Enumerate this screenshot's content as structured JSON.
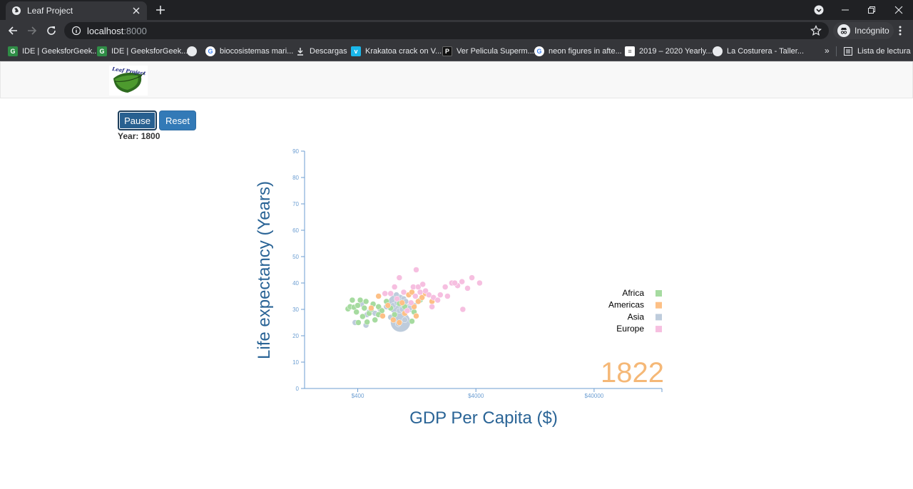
{
  "browser": {
    "tab_title": "Leaf Project",
    "url_host": "localhost",
    "url_port": ":8000",
    "incognito_label": "Incógnito",
    "bookmarks": [
      {
        "label": "IDE | GeeksforGeek...",
        "icon": "gfg-icon",
        "color": "#2f8d46"
      },
      {
        "label": "IDE | GeeksforGeek...",
        "icon": "gfg-icon",
        "color": "#2f8d46"
      },
      {
        "label": "",
        "icon": "globe-icon",
        "color": "#e8eaed"
      },
      {
        "label": "biocosistemas mari...",
        "icon": "google-icon",
        "color": "#ffffff"
      },
      {
        "label": "Descargas",
        "icon": "download-icon",
        "color": "#e8eaed"
      },
      {
        "label": "Krakatoa crack on V...",
        "icon": "vimeo-icon",
        "color": "#1ab7ea"
      },
      {
        "label": "Ver Pelicula Superm...",
        "icon": "p-icon",
        "color": "#111111"
      },
      {
        "label": "neon figures in afte...",
        "icon": "google-icon",
        "color": "#ffffff"
      },
      {
        "label": "2019 – 2020 Yearly...",
        "icon": "doc-icon",
        "color": "#ffffff"
      },
      {
        "label": "La Costurera - Taller...",
        "icon": "globe-icon",
        "color": "#e8eaed"
      }
    ],
    "more_label": "»",
    "reading_list_label": "Lista de lectura"
  },
  "page": {
    "logo_text": "Leaf Project",
    "pause_label": "Pause",
    "reset_label": "Reset",
    "year_label": "Year: 1800"
  },
  "chart_data": {
    "type": "scatter",
    "xlabel": "GDP Per Capita ($)",
    "ylabel": "Life expectancy (Years)",
    "x_scale": "log",
    "xlim": [
      142,
      150000
    ],
    "ylim": [
      0,
      90
    ],
    "x_ticks": [
      400,
      4000,
      40000
    ],
    "x_tick_labels": [
      "$400",
      "$4000",
      "$40000"
    ],
    "y_ticks": [
      0,
      10,
      20,
      30,
      40,
      50,
      60,
      70,
      80,
      90
    ],
    "year_overlay": "1822",
    "legend_position": "right",
    "grid": false,
    "colors": {
      "Africa": "#a6dba0",
      "Americas": "#fdc086",
      "Asia": "#beccdc",
      "Europe": "#f6bfe0",
      "year": "#f5b877",
      "axis": "#6c9ed2",
      "label": "#2a6496"
    },
    "series": [
      {
        "name": "Africa",
        "points": [
          [
            331,
            30.2
          ],
          [
            345,
            31.0
          ],
          [
            360,
            33.5
          ],
          [
            372,
            30.8
          ],
          [
            390,
            29.0
          ],
          [
            400,
            31.5
          ],
          [
            420,
            33.5
          ],
          [
            405,
            25.0
          ],
          [
            440,
            27.3
          ],
          [
            455,
            30.5
          ],
          [
            480,
            25.2
          ],
          [
            500,
            28.5
          ],
          [
            520,
            30.0
          ],
          [
            540,
            32.0
          ],
          [
            560,
            26.0
          ],
          [
            600,
            31.0
          ],
          [
            640,
            29.5
          ],
          [
            700,
            33.0
          ],
          [
            760,
            30.5
          ],
          [
            820,
            28.0
          ],
          [
            900,
            32.2
          ],
          [
            1000,
            31.0
          ],
          [
            1150,
            25.5
          ],
          [
            1350,
            33.5
          ],
          [
            1200,
            29.0
          ],
          [
            470,
            33.0
          ],
          [
            600,
            28.0
          ]
        ]
      },
      {
        "name": "Americas",
        "points": [
          [
            520,
            30.5
          ],
          [
            600,
            35.0
          ],
          [
            650,
            27.5
          ],
          [
            720,
            31.5
          ],
          [
            800,
            26.0
          ],
          [
            900,
            25.0
          ],
          [
            1000,
            28.5
          ],
          [
            1080,
            35.5
          ],
          [
            1150,
            36.5
          ],
          [
            1200,
            31.0
          ],
          [
            1300,
            33.0
          ],
          [
            1400,
            34.5
          ],
          [
            1500,
            36.0
          ],
          [
            1700,
            33.0
          ],
          [
            1250,
            27.5
          ],
          [
            950,
            32.5
          ]
        ]
      },
      {
        "name": "Asia",
        "points": [
          [
            380,
            25.0
          ],
          [
            430,
            32.0
          ],
          [
            470,
            24.0
          ],
          [
            500,
            29.0
          ],
          [
            560,
            28.5
          ],
          [
            620,
            30.0
          ],
          [
            700,
            31.0
          ],
          [
            760,
            27.0
          ],
          [
            800,
            31.5
          ],
          [
            850,
            35.5
          ],
          [
            860,
            32.5
          ],
          [
            880,
            24.5
          ],
          [
            900,
            29.5
          ],
          [
            950,
            30.0
          ],
          [
            980,
            34.0
          ],
          [
            1020,
            33.0
          ],
          [
            1100,
            30.5
          ],
          [
            1000,
            26.0
          ],
          [
            1200,
            31.5
          ],
          [
            480,
            28.0
          ]
        ],
        "big": [
          [
            870,
            32.0,
            14
          ],
          [
            920,
            25.2,
            14
          ],
          [
            1100,
            30.5,
            6
          ]
        ]
      },
      {
        "name": "Europe",
        "points": [
          [
            680,
            36.0
          ],
          [
            760,
            36.0
          ],
          [
            820,
            38.5
          ],
          [
            860,
            34.0
          ],
          [
            900,
            42.0
          ],
          [
            980,
            36.5
          ],
          [
            1050,
            29.5
          ],
          [
            1130,
            32.5
          ],
          [
            1180,
            38.5
          ],
          [
            1250,
            45.0
          ],
          [
            1300,
            38.5
          ],
          [
            1350,
            36.5
          ],
          [
            1420,
            39.5
          ],
          [
            1500,
            37.0
          ],
          [
            1600,
            35.5
          ],
          [
            1700,
            31.0
          ],
          [
            1750,
            34.5
          ],
          [
            1900,
            33.5
          ],
          [
            2000,
            35.5
          ],
          [
            2200,
            38.5
          ],
          [
            2300,
            35.0
          ],
          [
            2500,
            40.0
          ],
          [
            2800,
            39.0
          ],
          [
            3050,
            40.5
          ],
          [
            3400,
            38.0
          ],
          [
            4300,
            40.0
          ],
          [
            3700,
            42.0
          ],
          [
            3100,
            30.0
          ],
          [
            2650,
            40.0
          ],
          [
            1230,
            35.0
          ]
        ]
      }
    ]
  }
}
